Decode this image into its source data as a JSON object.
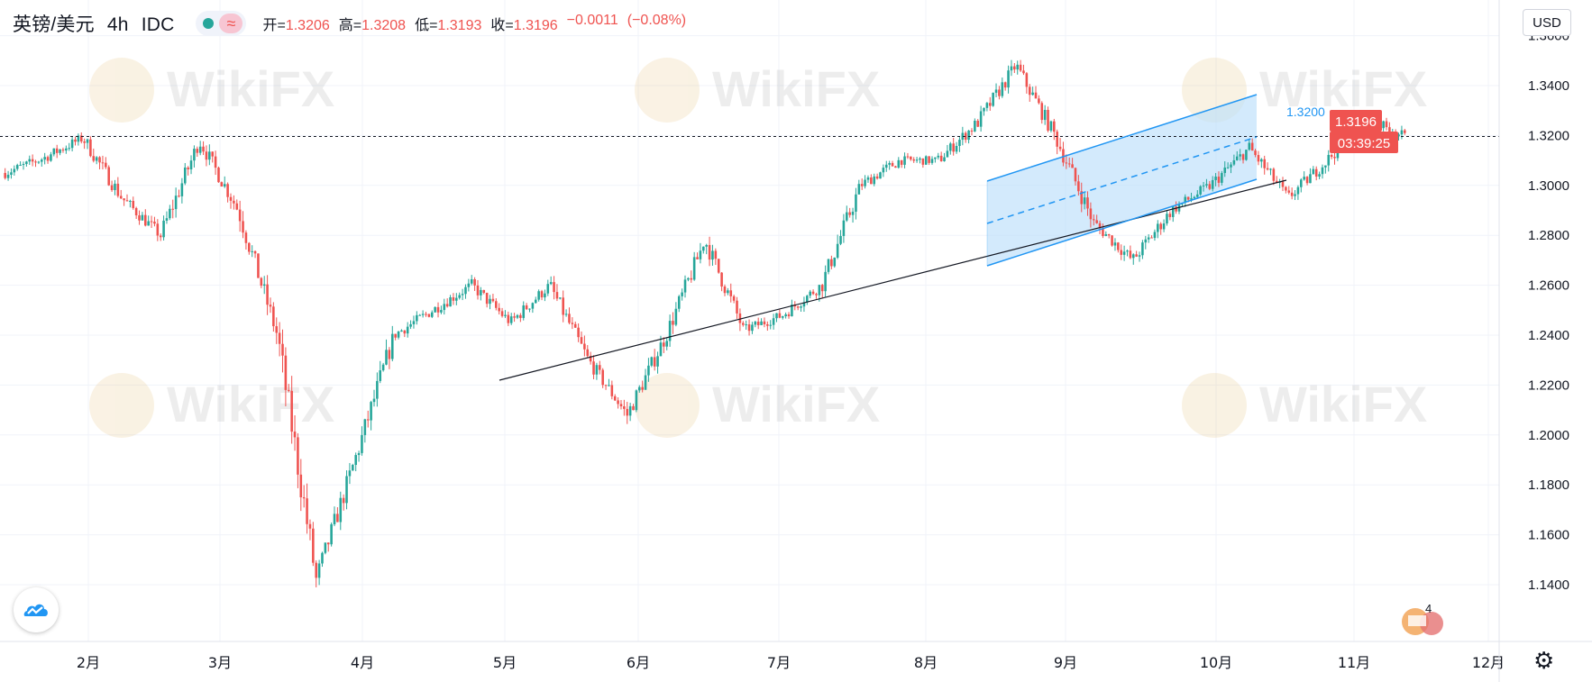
{
  "header": {
    "symbol": "英镑/美元",
    "interval": "4h",
    "exchange": "IDC",
    "open_label": "开=",
    "open": "1.3206",
    "high_label": "高=",
    "high": "1.3208",
    "low_label": "低=",
    "low": "1.3193",
    "close_label": "收=",
    "close": "1.3196",
    "change": "−0.0011",
    "change_pct": "(−0.08%)"
  },
  "currency_button": "USD",
  "price_tag": "1.3196",
  "countdown": "03:39:25",
  "channel_label": "1.3200",
  "watermark": "WikiFX",
  "badge_text": "4",
  "icons": {
    "settings": "gear-icon",
    "brand": "tradingview-cloud-icon",
    "live": "live-dot-icon",
    "compare": "approx-icon"
  },
  "colors": {
    "up": "#26a69a",
    "down": "#ef5350",
    "channel": "#2196f3",
    "channel_fill": "#bbdefb",
    "trendline": "#131722",
    "price_tag": "#ef5350"
  },
  "chart_data": {
    "type": "candlestick",
    "title": "英镑/美元 4h IDC",
    "x_tick_labels": [
      "2月",
      "3月",
      "4月",
      "5月",
      "6月",
      "7月",
      "8月",
      "9月",
      "10月",
      "11月",
      "12月"
    ],
    "y_ticks": [
      "1.1400",
      "1.1600",
      "1.1800",
      "1.2000",
      "1.2200",
      "1.2400",
      "1.2600",
      "1.2800",
      "1.3000",
      "1.3200",
      "1.3400",
      "1.3600"
    ],
    "ylim": [
      1.125,
      1.366
    ],
    "approx_close_path": [
      {
        "x": "1月中",
        "y": 1.305
      },
      {
        "x": "1月下",
        "y": 1.311
      },
      {
        "x": "2月初",
        "y": 1.319
      },
      {
        "x": "2月中",
        "y": 1.295
      },
      {
        "x": "2月下",
        "y": 1.28
      },
      {
        "x": "3月初",
        "y": 1.318
      },
      {
        "x": "3月上",
        "y": 1.29
      },
      {
        "x": "3月中",
        "y": 1.24
      },
      {
        "x": "3月20日",
        "y": 1.142
      },
      {
        "x": "3月下",
        "y": 1.19
      },
      {
        "x": "3月末",
        "y": 1.24
      },
      {
        "x": "4月中",
        "y": 1.25
      },
      {
        "x": "4月下",
        "y": 1.26
      },
      {
        "x": "5月初",
        "y": 1.245
      },
      {
        "x": "5月上",
        "y": 1.26
      },
      {
        "x": "5月中",
        "y": 1.23
      },
      {
        "x": "5月下",
        "y": 1.208
      },
      {
        "x": "6月初",
        "y": 1.24
      },
      {
        "x": "6月中",
        "y": 1.278
      },
      {
        "x": "6月下",
        "y": 1.242
      },
      {
        "x": "7月初",
        "y": 1.248
      },
      {
        "x": "7月中",
        "y": 1.26
      },
      {
        "x": "7月下",
        "y": 1.3
      },
      {
        "x": "8月初",
        "y": 1.31
      },
      {
        "x": "8月中",
        "y": 1.31
      },
      {
        "x": "8月下",
        "y": 1.325
      },
      {
        "x": "9月初",
        "y": 1.348
      },
      {
        "x": "9月上",
        "y": 1.32
      },
      {
        "x": "9月中",
        "y": 1.285
      },
      {
        "x": "9月下",
        "y": 1.27
      },
      {
        "x": "10月上",
        "y": 1.29
      },
      {
        "x": "10月中",
        "y": 1.3
      },
      {
        "x": "10月下",
        "y": 1.315
      },
      {
        "x": "11月初",
        "y": 1.295
      },
      {
        "x": "11月上",
        "y": 1.31
      },
      {
        "x": "11月中",
        "y": 1.327
      },
      {
        "x": "最新",
        "y": 1.3196
      }
    ],
    "horizontal_line": 1.3196,
    "channel_mid_label": 1.32
  }
}
